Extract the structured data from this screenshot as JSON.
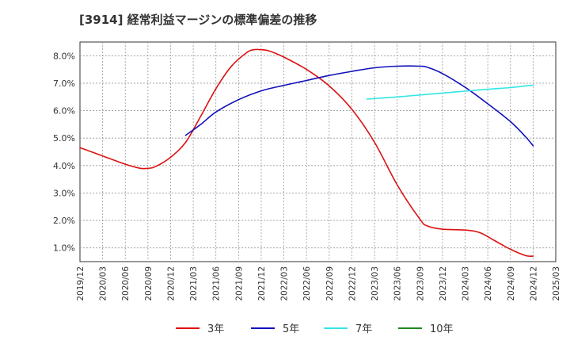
{
  "chart_data": {
    "type": "line",
    "title": "[3914]  経常利益マージンの標準偏差の推移",
    "xlabel": "",
    "ylabel": "",
    "ylim": [
      0.5,
      8.5
    ],
    "yticks": [
      1.0,
      2.0,
      3.0,
      4.0,
      5.0,
      6.0,
      7.0,
      8.0
    ],
    "ytick_labels": [
      "1.0%",
      "2.0%",
      "3.0%",
      "4.0%",
      "5.0%",
      "6.0%",
      "7.0%",
      "8.0%"
    ],
    "x_ticks": [
      "2019/12",
      "2020/03",
      "2020/06",
      "2020/09",
      "2020/12",
      "2021/03",
      "2021/06",
      "2021/09",
      "2021/12",
      "2022/03",
      "2022/06",
      "2022/09",
      "2022/12",
      "2023/03",
      "2023/06",
      "2023/09",
      "2023/12",
      "2024/03",
      "2024/06",
      "2024/09",
      "2024/12",
      "2025/03"
    ],
    "grid": true,
    "legend_position": "bottom",
    "series": [
      {
        "name": "3年",
        "color": "#dd1111",
        "points": [
          [
            "2019/12",
            4.65
          ],
          [
            "2020/03",
            4.35
          ],
          [
            "2020/06",
            4.05
          ],
          [
            "2020/08",
            3.9
          ],
          [
            "2020/09",
            3.9
          ],
          [
            "2020/10",
            3.96
          ],
          [
            "2020/12",
            4.3
          ],
          [
            "2021/02",
            4.85
          ],
          [
            "2021/04",
            5.8
          ],
          [
            "2021/06",
            6.8
          ],
          [
            "2021/08",
            7.6
          ],
          [
            "2021/10",
            8.1
          ],
          [
            "2021/11",
            8.22
          ],
          [
            "2021/12",
            8.22
          ],
          [
            "2022/01",
            8.18
          ],
          [
            "2022/03",
            7.95
          ],
          [
            "2022/06",
            7.5
          ],
          [
            "2022/09",
            6.9
          ],
          [
            "2022/12",
            6.05
          ],
          [
            "2023/03",
            4.85
          ],
          [
            "2023/06",
            3.3
          ],
          [
            "2023/09",
            2.05
          ],
          [
            "2023/10",
            1.8
          ],
          [
            "2023/12",
            1.68
          ],
          [
            "2024/03",
            1.65
          ],
          [
            "2024/05",
            1.55
          ],
          [
            "2024/07",
            1.25
          ],
          [
            "2024/09",
            0.95
          ],
          [
            "2024/11",
            0.72
          ],
          [
            "2024/12",
            0.7
          ]
        ]
      },
      {
        "name": "5年",
        "color": "#1111bb",
        "points": [
          [
            "2021/02",
            5.1
          ],
          [
            "2021/04",
            5.5
          ],
          [
            "2021/06",
            5.95
          ],
          [
            "2021/09",
            6.4
          ],
          [
            "2021/12",
            6.72
          ],
          [
            "2022/03",
            6.92
          ],
          [
            "2022/06",
            7.1
          ],
          [
            "2022/09",
            7.28
          ],
          [
            "2022/12",
            7.43
          ],
          [
            "2023/03",
            7.56
          ],
          [
            "2023/06",
            7.62
          ],
          [
            "2023/09",
            7.62
          ],
          [
            "2023/10",
            7.58
          ],
          [
            "2023/12",
            7.35
          ],
          [
            "2024/03",
            6.85
          ],
          [
            "2024/06",
            6.25
          ],
          [
            "2024/09",
            5.6
          ],
          [
            "2024/11",
            5.05
          ],
          [
            "2024/12",
            4.72
          ]
        ]
      },
      {
        "name": "7年",
        "color": "#33e5e5",
        "points": [
          [
            "2023/02",
            6.42
          ],
          [
            "2023/06",
            6.5
          ],
          [
            "2023/09",
            6.57
          ],
          [
            "2023/12",
            6.64
          ],
          [
            "2024/03",
            6.71
          ],
          [
            "2024/06",
            6.78
          ],
          [
            "2024/09",
            6.84
          ],
          [
            "2024/12",
            6.93
          ]
        ]
      },
      {
        "name": "10年",
        "color": "#228822",
        "points": []
      }
    ]
  }
}
